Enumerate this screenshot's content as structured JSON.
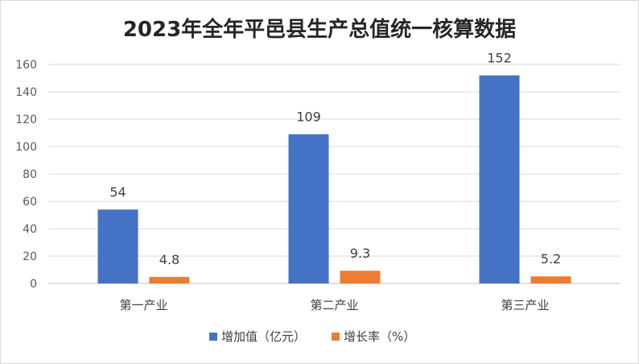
{
  "chart_data": {
    "type": "bar",
    "title": "2023年全年平邑县生产总值统一核算数据",
    "categories": [
      "第一产业",
      "第二产业",
      "第三产业"
    ],
    "series": [
      {
        "name": "增加值（亿元）",
        "values": [
          54,
          109,
          152
        ],
        "labels": [
          "54",
          "109",
          "152"
        ],
        "color": "#4472c4"
      },
      {
        "name": "增长率（%）",
        "values": [
          4.8,
          9.3,
          5.2
        ],
        "labels": [
          "4.8",
          "9.3",
          "5.2"
        ],
        "color": "#ed7d31"
      }
    ],
    "y_ticks": [
      "0",
      "20",
      "40",
      "60",
      "80",
      "100",
      "120",
      "140",
      "160"
    ],
    "ylim": [
      0,
      160
    ],
    "grid": true,
    "legend_position": "bottom"
  }
}
